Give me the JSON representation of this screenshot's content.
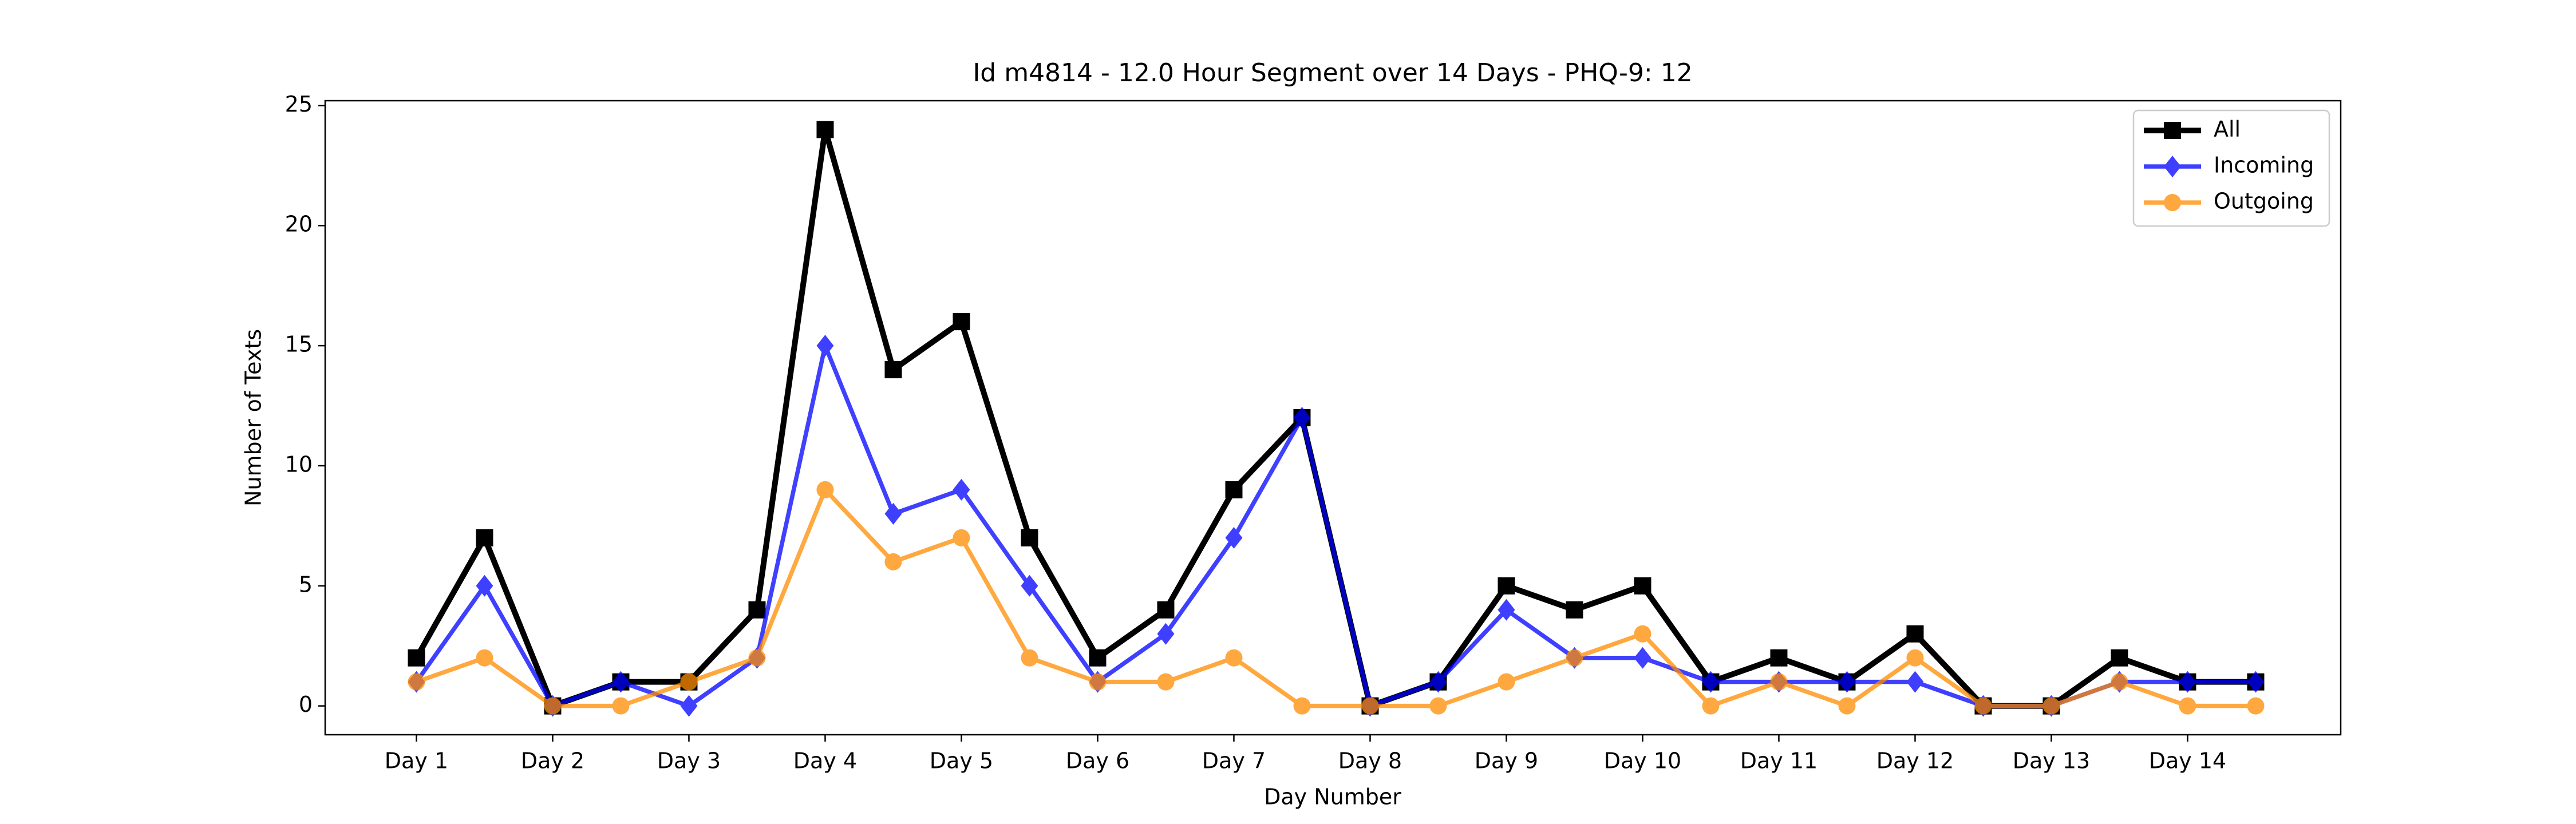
{
  "chart_data": {
    "type": "line",
    "title": "Id m4814 - 12.0 Hour Segment over 14 Days - PHQ-9: 12",
    "x_label": "Day Number",
    "y_label": "Number of Texts",
    "categories": [
      "Day 1",
      null,
      "Day 2",
      null,
      "Day 3",
      null,
      "Day 4",
      null,
      "Day 5",
      null,
      "Day 6",
      null,
      "Day 7",
      null,
      "Day 8",
      null,
      "Day 9",
      null,
      "Day 10",
      null,
      "Day 11",
      null,
      "Day 12",
      null,
      "Day 13",
      null,
      "Day 14",
      null
    ],
    "series": [
      {
        "name": "All",
        "color": "#000000",
        "marker": "square",
        "values": [
          2,
          7,
          0,
          1,
          1,
          4,
          24,
          14,
          16,
          7,
          2,
          4,
          9,
          12,
          0,
          1,
          5,
          4,
          5,
          1,
          2,
          1,
          3,
          0,
          0,
          2,
          1,
          1
        ]
      },
      {
        "name": "Incoming",
        "color": "#0000ff",
        "marker": "diamond",
        "values": [
          1,
          5,
          0,
          1,
          0,
          2,
          15,
          8,
          9,
          5,
          1,
          3,
          7,
          12,
          0,
          1,
          4,
          2,
          2,
          1,
          1,
          1,
          1,
          0,
          0,
          1,
          1,
          1
        ]
      },
      {
        "name": "Outgoing",
        "color": "#ff8c00",
        "marker": "circle",
        "values": [
          1,
          2,
          0,
          0,
          1,
          2,
          9,
          6,
          7,
          2,
          1,
          1,
          2,
          0,
          0,
          0,
          1,
          2,
          3,
          0,
          1,
          0,
          2,
          0,
          0,
          1,
          0,
          0
        ]
      }
    ],
    "ylim": [
      -1.2,
      25.2
    ],
    "yticks": [
      0,
      5,
      10,
      15,
      20,
      25
    ],
    "legend": "upper right"
  }
}
